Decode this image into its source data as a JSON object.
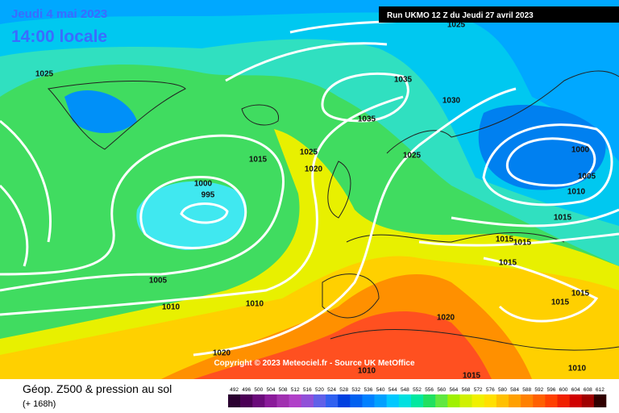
{
  "header": {
    "title": "Jeudi 4 mai 2023",
    "time": "14:00 locale",
    "run": "Run UKMO 12 Z du Jeudi 27 avril 2023"
  },
  "isobars": [
    1025,
    1025,
    1035,
    1030,
    1035,
    1025,
    1015,
    1020,
    1025,
    1000,
    1005,
    1010,
    1000,
    995,
    1015,
    1015,
    1015,
    1015,
    1005,
    1015,
    1015,
    1010,
    1010,
    1020,
    1020,
    1010,
    1015,
    1010
  ],
  "copyright": "Copyright © 2023 Meteociel.fr - Source UK MetOffice",
  "footer": {
    "title": "Géop. Z500 & pression au sol",
    "lead": "(+ 168h)"
  },
  "legend": {
    "labels": [
      492,
      496,
      500,
      504,
      508,
      512,
      516,
      520,
      524,
      528,
      532,
      536,
      540,
      544,
      548,
      552,
      556,
      560,
      564,
      568,
      572,
      576,
      580,
      584,
      588,
      592,
      596,
      600,
      604,
      608,
      612
    ],
    "colors": [
      "#2a0030",
      "#4b0055",
      "#6a0a7a",
      "#8a1a9a",
      "#a030b0",
      "#b040c8",
      "#9050d8",
      "#6060e8",
      "#3060f0",
      "#0040e0",
      "#0060f0",
      "#0080ff",
      "#00a0ff",
      "#00c8ff",
      "#00e0e0",
      "#00e8a0",
      "#20e060",
      "#60e840",
      "#a0f000",
      "#d0f000",
      "#f0f000",
      "#ffe000",
      "#ffc000",
      "#ffa000",
      "#ff8000",
      "#ff6000",
      "#ff4000",
      "#f02000",
      "#d00000",
      "#a00000",
      "#300000"
    ]
  }
}
